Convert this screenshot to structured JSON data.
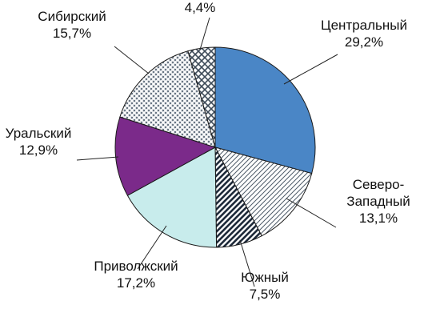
{
  "chart_data": {
    "type": "pie",
    "title": "",
    "start_angle_deg": 0,
    "direction": "clockwise",
    "slices": [
      {
        "name": "Центральный",
        "value": 29.2,
        "value_label": "29,2%",
        "fill": "#4a86c6",
        "pattern": "solid"
      },
      {
        "name": "Северо-\nЗападный",
        "value": 13.1,
        "value_label": "13,1%",
        "fill": "#8fa0b4",
        "pattern": "diagonal-fine"
      },
      {
        "name": "Южный",
        "value": 7.5,
        "value_label": "7,5%",
        "fill": "#1e2a3a",
        "pattern": "diagonal-bold"
      },
      {
        "name": "Приволжский",
        "value": 17.2,
        "value_label": "17,2%",
        "fill": "#c8ecec",
        "pattern": "solid"
      },
      {
        "name": "Уральский",
        "value": 12.9,
        "value_label": "12,9%",
        "fill": "#7b2a8a",
        "pattern": "solid"
      },
      {
        "name": "Сибирский",
        "value": 15.7,
        "value_label": "15,7%",
        "fill": "#9aa6b2",
        "pattern": "dotted-weave"
      },
      {
        "name": "",
        "value": 4.4,
        "value_label": "4,4%",
        "fill": "#8a98a8",
        "pattern": "crosshatch"
      }
    ]
  }
}
